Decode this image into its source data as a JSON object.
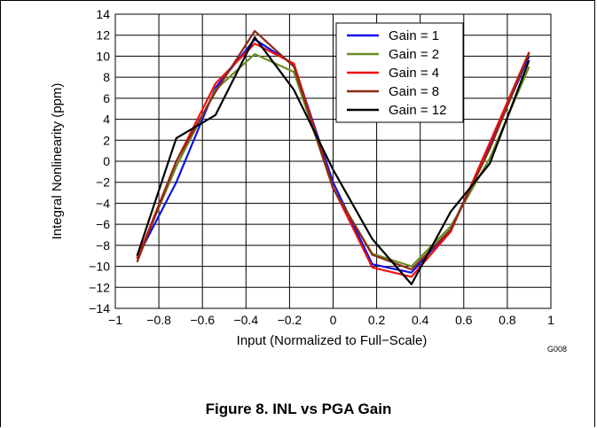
{
  "figure": {
    "caption": "Figure 8. INL vs PGA Gain",
    "code": "G008"
  },
  "chart_data": {
    "type": "line",
    "title": "",
    "xlabel": "Input (Normalized to Full−Scale)",
    "ylabel": "Integral Nonlinearity (ppm)",
    "xlim": [
      -1,
      1
    ],
    "ylim": [
      -14,
      14
    ],
    "xticks": [
      -1,
      -0.8,
      -0.6,
      -0.4,
      -0.2,
      0,
      0.2,
      0.4,
      0.6,
      0.8,
      1
    ],
    "xtick_labels": [
      "−1",
      "−0.8",
      "−0.6",
      "−0.4",
      "−0.2",
      "0",
      "0.2",
      "0.4",
      "0.6",
      "0.8",
      "1"
    ],
    "yticks": [
      -14,
      -12,
      -10,
      -8,
      -6,
      -4,
      -2,
      0,
      2,
      4,
      6,
      8,
      10,
      12,
      14
    ],
    "ytick_labels": [
      "−14",
      "−12",
      "−10",
      "−8",
      "−6",
      "−4",
      "−2",
      "0",
      "2",
      "4",
      "6",
      "8",
      "10",
      "12",
      "14"
    ],
    "grid": true,
    "legend_position": "top-right",
    "x": [
      -0.9,
      -0.72,
      -0.54,
      -0.36,
      -0.18,
      0,
      0.18,
      0.36,
      0.54,
      0.72,
      0.9
    ],
    "series": [
      {
        "name": "Gain = 1",
        "color": "#1010e8",
        "values": [
          -9.2,
          -2.0,
          7.0,
          11.6,
          9.2,
          -2.0,
          -9.8,
          -10.6,
          -6.5,
          1.5,
          10.0
        ]
      },
      {
        "name": "Gain = 2",
        "color": "#6b8e23",
        "values": [
          -9.3,
          -0.5,
          6.8,
          10.2,
          8.5,
          -2.6,
          -8.8,
          -10.0,
          -6.2,
          0.3,
          9.0
        ]
      },
      {
        "name": "Gain = 4",
        "color": "#f01010",
        "values": [
          -9.3,
          0.0,
          7.4,
          11.2,
          9.3,
          -2.5,
          -10.1,
          -11.0,
          -6.7,
          1.8,
          10.4
        ]
      },
      {
        "name": "Gain = 8",
        "color": "#8b2a14",
        "values": [
          -9.6,
          0.0,
          6.6,
          12.4,
          9.0,
          -2.6,
          -8.9,
          -10.3,
          -6.5,
          1.2,
          10.3
        ]
      },
      {
        "name": "Gain = 12",
        "color": "#000000",
        "values": [
          -9.0,
          2.2,
          4.4,
          11.8,
          6.8,
          -0.8,
          -7.4,
          -11.7,
          -4.8,
          -0.2,
          9.6
        ]
      }
    ]
  }
}
